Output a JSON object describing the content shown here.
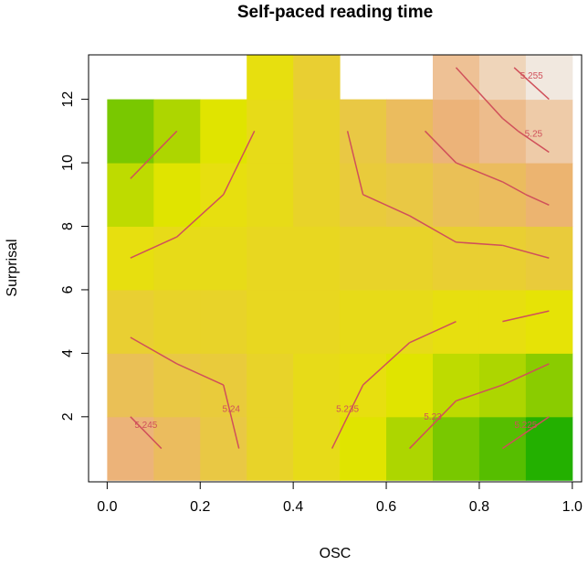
{
  "chart_data": {
    "type": "contour",
    "title": "Self-paced reading time",
    "xlabel": "OSC",
    "ylabel": "Surprisal",
    "xlim": [
      -0.04,
      1.02
    ],
    "ylim": [
      -0.05,
      13.4
    ],
    "xticks": [
      {
        "value": 0,
        "label": "0.0"
      },
      0.2,
      0.4,
      0.6,
      0.8,
      {
        "value": 1,
        "label": "1.0"
      }
    ],
    "yticks": [
      2,
      4,
      6,
      8,
      10,
      12
    ],
    "x": [
      0.05,
      0.15,
      0.25,
      0.35,
      0.45,
      0.55,
      0.65,
      0.75,
      0.85,
      0.95
    ],
    "y": [
      1,
      3,
      5,
      7,
      9,
      11,
      13
    ],
    "z": [
      [
        5.247,
        5.244,
        5.241,
        5.238,
        5.236,
        5.233,
        5.23,
        5.227,
        5.225,
        5.222
      ],
      [
        5.243,
        5.241,
        5.24,
        5.238,
        5.236,
        5.235,
        5.233,
        5.231,
        5.23,
        5.228
      ],
      [
        5.239,
        5.238,
        5.238,
        5.237,
        5.237,
        5.236,
        5.236,
        5.235,
        5.235,
        5.234
      ],
      [
        5.235,
        5.236,
        5.236,
        5.237,
        5.237,
        5.238,
        5.238,
        5.239,
        5.239,
        5.24
      ],
      [
        5.231,
        5.233,
        5.235,
        5.236,
        5.238,
        5.24,
        5.241,
        5.243,
        5.244,
        5.246
      ],
      [
        5.227,
        5.23,
        5.233,
        5.236,
        5.238,
        5.241,
        5.244,
        5.247,
        5.249,
        5.252
      ],
      [
        null,
        null,
        null,
        5.235,
        5.239,
        null,
        null,
        5.25,
        5.254,
        5.258
      ]
    ],
    "zlim": [
      5.22,
      5.26
    ],
    "colorscale": [
      "#00a600",
      "#e6e600",
      "#ecb176",
      "#f2f2f2"
    ],
    "levels": [
      5.225,
      5.23,
      5.235,
      5.24,
      5.245,
      5.25,
      5.255
    ],
    "contour_color": "#d0505a"
  }
}
